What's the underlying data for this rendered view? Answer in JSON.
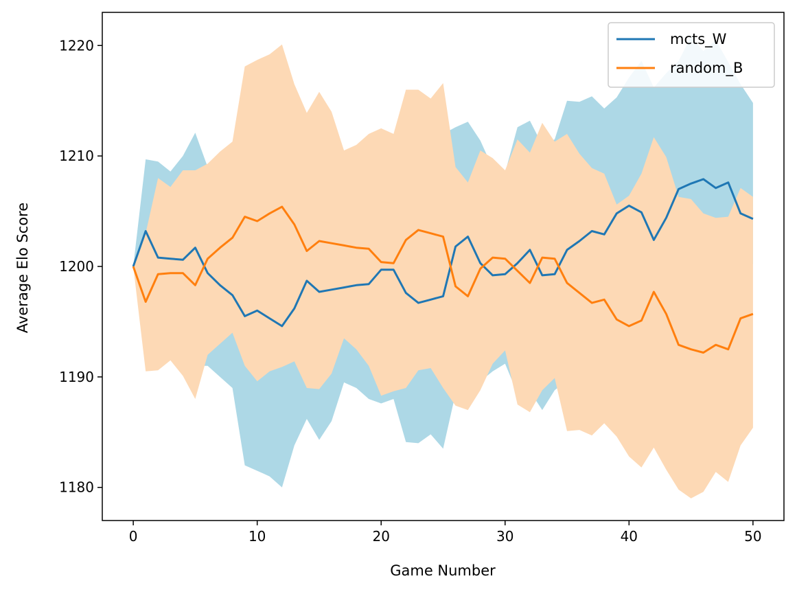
{
  "chart_data": {
    "type": "line",
    "xlabel": "Game Number",
    "ylabel": "Average Elo Score",
    "xlim": [
      -2.5,
      52.5
    ],
    "ylim": [
      1177,
      1223
    ],
    "xticks": [
      0,
      10,
      20,
      30,
      40,
      50
    ],
    "yticks": [
      1180,
      1190,
      1200,
      1210,
      1220
    ],
    "grid": false,
    "legend_position": "top-right",
    "series": [
      {
        "name": "mcts_W",
        "color": "#1f77b4",
        "band_color": "#add8e6",
        "x": [
          0,
          1,
          2,
          3,
          4,
          5,
          6,
          7,
          8,
          9,
          10,
          11,
          12,
          13,
          14,
          15,
          16,
          17,
          18,
          19,
          20,
          21,
          22,
          23,
          24,
          25,
          26,
          27,
          28,
          29,
          30,
          31,
          32,
          33,
          34,
          35,
          36,
          37,
          38,
          39,
          40,
          41,
          42,
          43,
          44,
          45,
          46,
          47,
          48,
          49,
          50
        ],
        "y": [
          1200.0,
          1203.2,
          1200.8,
          1200.7,
          1200.6,
          1201.7,
          1199.4,
          1198.3,
          1197.4,
          1195.5,
          1196.0,
          1195.3,
          1194.6,
          1196.2,
          1198.7,
          1197.7,
          1197.9,
          1198.1,
          1198.3,
          1198.4,
          1199.7,
          1199.7,
          1197.6,
          1196.7,
          1197.0,
          1197.3,
          1201.8,
          1202.7,
          1200.3,
          1199.2,
          1199.3,
          1200.3,
          1201.5,
          1199.2,
          1199.3,
          1201.5,
          1202.3,
          1203.2,
          1202.9,
          1204.8,
          1205.5,
          1204.9,
          1202.4,
          1204.4,
          1207.0,
          1207.5,
          1207.9,
          1207.1,
          1207.6,
          1204.8,
          1204.3
        ],
        "lower": [
          1200.0,
          1196.5,
          1192.0,
          1193.0,
          1192.0,
          1191.0,
          1191.0,
          1190.0,
          1189.0,
          1182.0,
          1181.5,
          1181.0,
          1180.0,
          1183.8,
          1186.2,
          1184.3,
          1186.0,
          1189.5,
          1189.0,
          1188.0,
          1187.6,
          1188.0,
          1184.1,
          1184.0,
          1184.8,
          1183.5,
          1188.5,
          1189.0,
          1189.6,
          1190.5,
          1191.2,
          1188.5,
          1188.7,
          1187.0,
          1188.8,
          1189.7,
          1190.0,
          1191.0,
          1191.5,
          1192.5,
          1193.0,
          1192.0,
          1191.5,
          1192.5,
          1194.0,
          1196.0,
          1198.0,
          1199.0,
          1200.0,
          1200.5,
          1200.2
        ],
        "upper": [
          1200.0,
          1209.7,
          1209.5,
          1208.6,
          1210.0,
          1212.1,
          1209.0,
          1207.0,
          1206.0,
          1209.0,
          1210.5,
          1210.5,
          1209.5,
          1208.5,
          1210.5,
          1210.5,
          1210.0,
          1210.0,
          1209.5,
          1209.5,
          1210.0,
          1210.5,
          1211.0,
          1211.5,
          1212.0,
          1212.0,
          1212.6,
          1213.1,
          1211.4,
          1208.9,
          1208.5,
          1212.6,
          1213.2,
          1211.0,
          1211.5,
          1215.0,
          1214.9,
          1215.4,
          1214.3,
          1215.3,
          1217.1,
          1218.6,
          1216.2,
          1217.5,
          1218.6,
          1220.8,
          1219.5,
          1220.5,
          1218.5,
          1216.5,
          1214.8
        ]
      },
      {
        "name": "random_B",
        "color": "#ff7f0e",
        "band_color": "#fdd9b5",
        "x": [
          0,
          1,
          2,
          3,
          4,
          5,
          6,
          7,
          8,
          9,
          10,
          11,
          12,
          13,
          14,
          15,
          16,
          17,
          18,
          19,
          20,
          21,
          22,
          23,
          24,
          25,
          26,
          27,
          28,
          29,
          30,
          31,
          32,
          33,
          34,
          35,
          36,
          37,
          38,
          39,
          40,
          41,
          42,
          43,
          44,
          45,
          46,
          47,
          48,
          49,
          50
        ],
        "y": [
          1200.0,
          1196.8,
          1199.3,
          1199.4,
          1199.4,
          1198.3,
          1200.7,
          1201.7,
          1202.6,
          1204.5,
          1204.1,
          1204.8,
          1205.4,
          1203.8,
          1201.4,
          1202.3,
          1202.1,
          1201.9,
          1201.7,
          1201.6,
          1200.4,
          1200.3,
          1202.4,
          1203.3,
          1203.0,
          1202.7,
          1198.2,
          1197.3,
          1199.8,
          1200.8,
          1200.7,
          1199.6,
          1198.5,
          1200.8,
          1200.7,
          1198.5,
          1197.6,
          1196.7,
          1197.0,
          1195.2,
          1194.6,
          1195.1,
          1197.7,
          1195.7,
          1192.9,
          1192.5,
          1192.2,
          1192.9,
          1192.5,
          1195.3,
          1195.7
        ],
        "lower": [
          1200.0,
          1190.5,
          1190.6,
          1191.5,
          1190.1,
          1188.0,
          1192.0,
          1193.0,
          1194.0,
          1191.0,
          1189.6,
          1190.5,
          1190.9,
          1191.4,
          1189.0,
          1188.9,
          1190.3,
          1193.5,
          1192.5,
          1191.0,
          1188.3,
          1188.7,
          1189.0,
          1190.6,
          1190.8,
          1189.0,
          1187.4,
          1187.0,
          1188.8,
          1191.2,
          1192.4,
          1187.5,
          1186.8,
          1188.8,
          1189.9,
          1185.1,
          1185.2,
          1184.7,
          1185.8,
          1184.6,
          1182.8,
          1181.8,
          1183.6,
          1181.6,
          1179.8,
          1179.0,
          1179.6,
          1181.4,
          1180.5,
          1183.8,
          1185.4
        ],
        "upper": [
          1200.0,
          1203.0,
          1208.0,
          1207.2,
          1208.7,
          1208.7,
          1209.3,
          1210.4,
          1211.3,
          1218.1,
          1218.7,
          1219.2,
          1220.1,
          1216.5,
          1213.9,
          1215.8,
          1214.0,
          1210.5,
          1211.0,
          1212.0,
          1212.5,
          1212.0,
          1216.0,
          1216.0,
          1215.2,
          1216.6,
          1209.0,
          1207.6,
          1210.5,
          1209.8,
          1208.7,
          1211.5,
          1210.3,
          1213.0,
          1211.3,
          1212.0,
          1210.2,
          1208.9,
          1208.4,
          1205.6,
          1206.4,
          1208.4,
          1211.7,
          1209.9,
          1206.3,
          1206.1,
          1204.8,
          1204.4,
          1204.5,
          1207.1,
          1206.3
        ]
      }
    ]
  }
}
